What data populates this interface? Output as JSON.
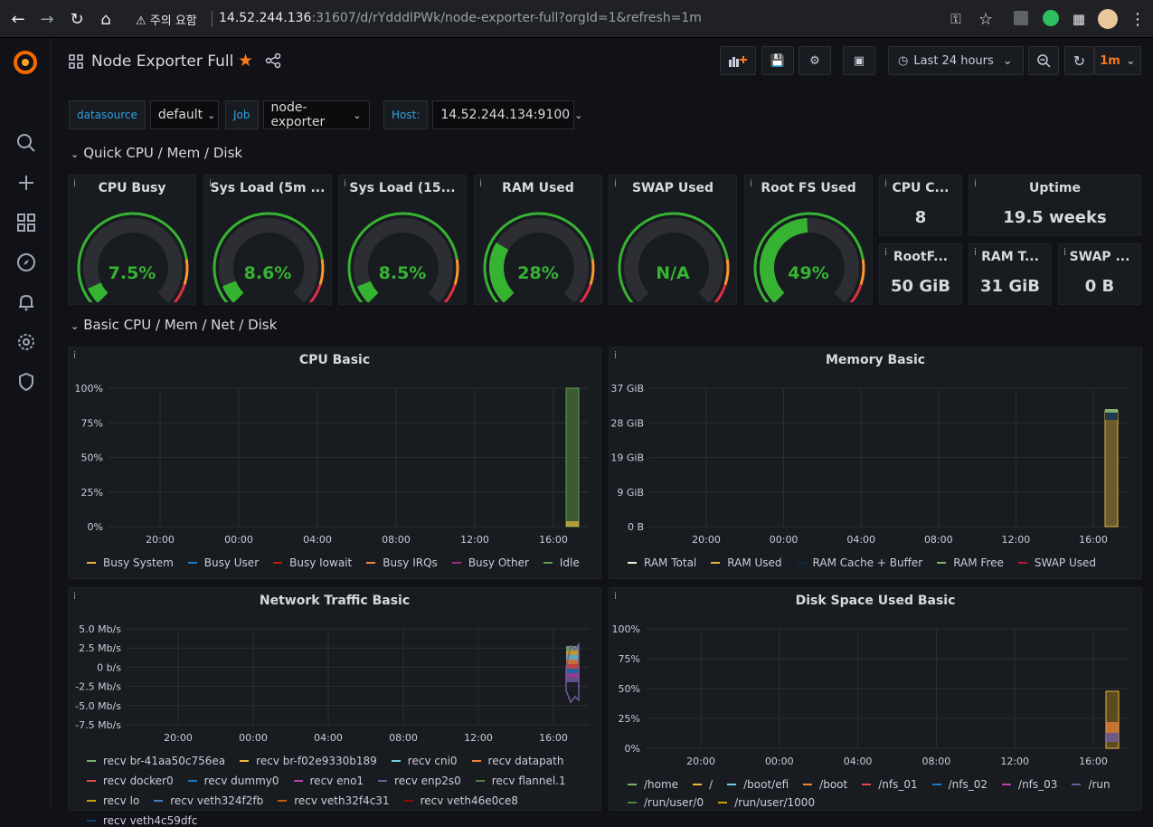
{
  "browser": {
    "warn": "주의 요함",
    "url_host": "14.52.244.136",
    "url_rest": ":31607/d/rYdddlPWk/node-exporter-full?orgId=1&refresh=1m"
  },
  "dashboard": {
    "title": "Node Exporter Full",
    "time_range": "Last 24 hours",
    "refresh": "1m"
  },
  "variables": [
    {
      "label": "datasource",
      "value": "default"
    },
    {
      "label": "Job",
      "value": "node-exporter"
    },
    {
      "label": "Host:",
      "value": "14.52.244.134:9100"
    }
  ],
  "rows": {
    "quick": "Quick CPU / Mem / Disk",
    "basic": "Basic CPU / Mem / Net / Disk"
  },
  "gauges": [
    {
      "title": "CPU Busy",
      "value": "7.5%",
      "pct": 7.5
    },
    {
      "title": "Sys Load (5m ...",
      "value": "8.6%",
      "pct": 8.6
    },
    {
      "title": "Sys Load (15...",
      "value": "8.5%",
      "pct": 8.5
    },
    {
      "title": "RAM Used",
      "value": "28%",
      "pct": 28
    },
    {
      "title": "SWAP Used",
      "value": "N/A",
      "pct": 0
    },
    {
      "title": "Root FS Used",
      "value": "49%",
      "pct": 49
    }
  ],
  "stats": [
    {
      "title": "CPU C...",
      "value": "8"
    },
    {
      "title": "Uptime",
      "value": "19.5 weeks"
    },
    {
      "title": "RootF...",
      "value": "50 GiB"
    },
    {
      "title": "RAM T...",
      "value": "31 GiB"
    },
    {
      "title": "SWAP ...",
      "value": "0 B"
    }
  ],
  "panels": {
    "cpu": {
      "title": "CPU Basic",
      "yticks": [
        "100%",
        "75%",
        "50%",
        "25%",
        "0%"
      ],
      "xticks": [
        "20:00",
        "00:00",
        "04:00",
        "08:00",
        "12:00",
        "16:00"
      ],
      "legend": [
        {
          "name": "Busy System",
          "color": "#EAB839"
        },
        {
          "name": "Busy User",
          "color": "#1F78C1"
        },
        {
          "name": "Busy Iowait",
          "color": "#BF1B00"
        },
        {
          "name": "Busy IRQs",
          "color": "#EF843C"
        },
        {
          "name": "Busy Other",
          "color": "#962D82"
        },
        {
          "name": "Idle",
          "color": "#629E51"
        }
      ]
    },
    "mem": {
      "title": "Memory Basic",
      "yticks": [
        "37 GiB",
        "28 GiB",
        "19 GiB",
        "9 GiB",
        "0 B"
      ],
      "xticks": [
        "20:00",
        "00:00",
        "04:00",
        "08:00",
        "12:00",
        "16:00"
      ],
      "legend": [
        {
          "name": "RAM Total",
          "color": "#E0F9D7"
        },
        {
          "name": "RAM Used",
          "color": "#EAB839"
        },
        {
          "name": "RAM Cache + Buffer",
          "color": "#052B51"
        },
        {
          "name": "RAM Free",
          "color": "#7EB26D"
        },
        {
          "name": "SWAP Used",
          "color": "#C4162A"
        }
      ]
    },
    "net": {
      "title": "Network Traffic Basic",
      "yticks": [
        "5.0 Mb/s",
        "2.5 Mb/s",
        "0 b/s",
        "-2.5 Mb/s",
        "-5.0 Mb/s",
        "-7.5 Mb/s"
      ],
      "xticks": [
        "20:00",
        "00:00",
        "04:00",
        "08:00",
        "12:00",
        "16:00"
      ],
      "legend": [
        {
          "name": "recv br-41aa50c756ea",
          "color": "#7EB26D"
        },
        {
          "name": "recv br-f02e9330b189",
          "color": "#EAB839"
        },
        {
          "name": "recv cni0",
          "color": "#6ED0E0"
        },
        {
          "name": "recv datapath",
          "color": "#EF843C"
        },
        {
          "name": "recv docker0",
          "color": "#E24D42"
        },
        {
          "name": "recv dummy0",
          "color": "#1F78C1"
        },
        {
          "name": "recv eno1",
          "color": "#BA43A9"
        },
        {
          "name": "recv enp2s0",
          "color": "#705DA0"
        },
        {
          "name": "recv flannel.1",
          "color": "#508642"
        },
        {
          "name": "recv lo",
          "color": "#CCA300"
        },
        {
          "name": "recv veth324f2fb",
          "color": "#447EBC"
        },
        {
          "name": "recv veth32f4c31",
          "color": "#C15C17"
        },
        {
          "name": "recv veth46e0ce8",
          "color": "#890F02"
        },
        {
          "name": "recv veth4c59dfc",
          "color": "#0A437C"
        }
      ]
    },
    "disk": {
      "title": "Disk Space Used Basic",
      "yticks": [
        "100%",
        "75%",
        "50%",
        "25%",
        "0%"
      ],
      "xticks": [
        "20:00",
        "00:00",
        "04:00",
        "08:00",
        "12:00",
        "16:00"
      ],
      "legend": [
        {
          "name": "/home",
          "color": "#7EB26D"
        },
        {
          "name": "/",
          "color": "#EAB839"
        },
        {
          "name": "/boot/efi",
          "color": "#6ED0E0"
        },
        {
          "name": "/boot",
          "color": "#EF843C"
        },
        {
          "name": "/nfs_01",
          "color": "#E24D42"
        },
        {
          "name": "/nfs_02",
          "color": "#1F78C1"
        },
        {
          "name": "/nfs_03",
          "color": "#BA43A9"
        },
        {
          "name": "/run",
          "color": "#705DA0"
        },
        {
          "name": "/run/user/0",
          "color": "#508642"
        },
        {
          "name": "/run/user/1000",
          "color": "#CCA300"
        }
      ]
    }
  }
}
